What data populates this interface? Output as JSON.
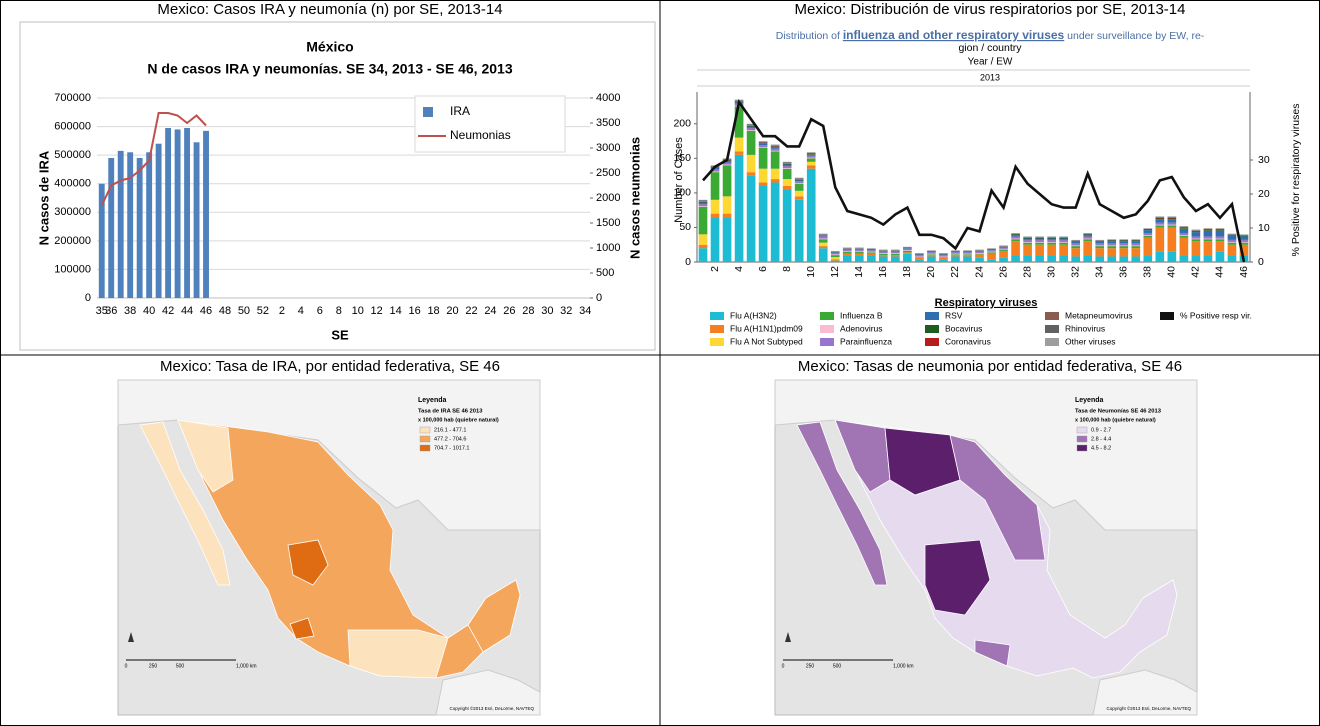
{
  "chart_data": [
    {
      "type": "combo",
      "panel_title": "Mexico: Casos IRA y neumonía (n) por SE, 2013-14",
      "title": "México",
      "subtitle": "N de casos IRA y neumonías. SE 34, 2013 - SE 46, 2013",
      "x_label": "SE",
      "y_label": "N casos de IRA",
      "y2_label": "N casos neumonias",
      "categories": [
        35,
        36,
        null,
        38,
        null,
        40,
        null,
        42,
        null,
        44,
        null,
        46,
        null,
        48,
        null,
        50,
        null,
        52,
        null,
        2,
        null,
        4,
        null,
        6,
        null,
        8,
        null,
        10,
        null,
        12,
        null,
        14,
        null,
        16,
        null,
        18,
        null,
        20,
        null,
        22,
        null,
        24,
        null,
        26,
        null,
        28,
        null,
        30,
        null,
        32,
        null,
        34
      ],
      "ylim": [
        0,
        700000
      ],
      "yticks": [
        0,
        100000,
        200000,
        300000,
        400000,
        500000,
        600000,
        700000
      ],
      "y2lim": [
        0,
        4000
      ],
      "y2ticks": [
        0,
        500,
        1000,
        1500,
        2000,
        2500,
        3000,
        3500,
        4000
      ],
      "grid": true,
      "legend": "upper right",
      "series": [
        {
          "name": "IRA",
          "type": "bar",
          "color": "#4f81bd",
          "values": [
            400000,
            490000,
            515000,
            510000,
            490000,
            510000,
            540000,
            595000,
            590000,
            595000,
            545000,
            585000,
            null,
            null,
            null,
            null,
            null,
            null,
            null,
            null,
            null,
            null,
            null,
            null,
            null,
            null,
            null,
            null,
            null,
            null,
            null,
            null,
            null,
            null,
            null,
            null,
            null,
            null,
            null,
            null,
            null,
            null,
            null,
            null,
            null,
            null,
            null,
            null,
            null,
            null,
            null,
            null
          ]
        },
        {
          "name": "Neumonias",
          "type": "line",
          "axis": "y2",
          "color": "#c0504d",
          "values": [
            1850,
            2250,
            2350,
            2400,
            2550,
            2750,
            3700,
            3700,
            3650,
            3500,
            3650,
            3450,
            null,
            null,
            null,
            null,
            null,
            null,
            null,
            null,
            null,
            null,
            null,
            null,
            null,
            null,
            null,
            null,
            null,
            null,
            null,
            null,
            null,
            null,
            null,
            null,
            null,
            null,
            null,
            null,
            null,
            null,
            null,
            null,
            null,
            null,
            null,
            null,
            null,
            null,
            null,
            null
          ]
        }
      ]
    },
    {
      "type": "stacked-combo",
      "panel_title": "Mexico: Distribución de virus respiratorios por SE, 2013-14",
      "subtitle": [
        "Distribution of ",
        "influenza and other respiratory viruses",
        " under surveillance by EW, re-",
        "gion / country"
      ],
      "header_label": "Year  /  EW",
      "header_value": "2013",
      "y_label": "Number of Cases",
      "y2_label": "% Positive for respiratory viruses",
      "legend_title": "Respiratory viruses",
      "categories": [
        null,
        2,
        null,
        4,
        null,
        6,
        null,
        8,
        null,
        10,
        null,
        12,
        null,
        14,
        null,
        16,
        null,
        18,
        null,
        20,
        null,
        22,
        null,
        24,
        null,
        26,
        null,
        28,
        null,
        30,
        null,
        32,
        null,
        34,
        null,
        36,
        null,
        38,
        null,
        40,
        null,
        42,
        null,
        44,
        null,
        46
      ],
      "ylim": [
        0,
        246
      ],
      "yticks": [
        0,
        50,
        100,
        150,
        200
      ],
      "y2lim": [
        0,
        50
      ],
      "y2ticks": [
        0,
        10,
        20,
        30
      ],
      "grid": false,
      "legend": "bottom",
      "series": [
        {
          "name": "Flu A(H3N2)",
          "type": "bar",
          "color": "#1ebcd3",
          "values": [
            20,
            65,
            65,
            155,
            125,
            110,
            115,
            105,
            90,
            135,
            20,
            2,
            10,
            10,
            10,
            8,
            8,
            12,
            4,
            8,
            4,
            8,
            8,
            6,
            4,
            6,
            10,
            10,
            10,
            10,
            10,
            8,
            10,
            8,
            8,
            8,
            8,
            10,
            15,
            15,
            10,
            10,
            10,
            15,
            10,
            10
          ]
        },
        {
          "name": "Flu A(H1N1)pdm09",
          "type": "bar",
          "color": "#f57f20",
          "values": [
            5,
            5,
            5,
            5,
            5,
            5,
            5,
            5,
            5,
            5,
            3,
            2,
            2,
            2,
            2,
            2,
            2,
            2,
            2,
            2,
            2,
            2,
            2,
            5,
            8,
            10,
            20,
            15,
            15,
            15,
            15,
            12,
            20,
            12,
            12,
            12,
            12,
            25,
            35,
            35,
            25,
            20,
            20,
            15,
            15,
            15
          ]
        },
        {
          "name": "Flu A Not Subtyped",
          "type": "bar",
          "color": "#fdd835",
          "values": [
            15,
            20,
            25,
            20,
            25,
            20,
            15,
            10,
            8,
            5,
            5,
            3,
            0,
            0,
            0,
            0,
            0,
            0,
            0,
            0,
            0,
            0,
            0,
            0,
            0,
            0,
            0,
            0,
            0,
            0,
            0,
            0,
            0,
            0,
            0,
            0,
            0,
            0,
            0,
            0,
            0,
            0,
            0,
            0,
            0,
            0
          ]
        },
        {
          "name": "Influenza B",
          "type": "bar",
          "color": "#3aaa35",
          "values": [
            40,
            40,
            45,
            45,
            35,
            30,
            25,
            15,
            10,
            5,
            5,
            3,
            3,
            3,
            2,
            2,
            2,
            2,
            1,
            1,
            1,
            1,
            1,
            1,
            2,
            2,
            3,
            3,
            3,
            3,
            3,
            3,
            3,
            3,
            3,
            3,
            3,
            3,
            3,
            3,
            3,
            3,
            3,
            3,
            3,
            3
          ]
        },
        {
          "name": "Adenovirus",
          "type": "bar",
          "color": "#f8bbd0",
          "values": [
            1,
            1,
            1,
            1,
            1,
            1,
            1,
            1,
            1,
            1,
            1,
            1,
            1,
            1,
            1,
            1,
            1,
            1,
            1,
            1,
            1,
            1,
            1,
            1,
            1,
            1,
            1,
            1,
            1,
            1,
            1,
            1,
            1,
            1,
            1,
            1,
            1,
            1,
            1,
            1,
            1,
            1,
            1,
            1,
            1,
            1
          ]
        },
        {
          "name": "Parainfluenza",
          "type": "bar",
          "color": "#9575cd",
          "values": [
            3,
            3,
            3,
            3,
            3,
            3,
            3,
            3,
            3,
            3,
            3,
            2,
            2,
            2,
            2,
            2,
            2,
            2,
            2,
            2,
            2,
            2,
            2,
            2,
            2,
            2,
            3,
            3,
            3,
            3,
            3,
            3,
            3,
            3,
            3,
            3,
            3,
            3,
            3,
            3,
            3,
            3,
            3,
            3,
            3,
            3
          ]
        },
        {
          "name": "RSV",
          "type": "bar",
          "color": "#2f6fb0",
          "values": [
            2,
            2,
            2,
            2,
            2,
            2,
            2,
            2,
            1,
            1,
            1,
            1,
            1,
            1,
            1,
            1,
            1,
            1,
            1,
            1,
            1,
            1,
            1,
            1,
            1,
            1,
            2,
            2,
            2,
            2,
            2,
            2,
            2,
            2,
            3,
            3,
            3,
            4,
            5,
            5,
            6,
            6,
            8,
            8,
            6,
            5
          ]
        },
        {
          "name": "Bocavirus",
          "type": "bar",
          "color": "#1b5e20",
          "values": [
            1,
            1,
            1,
            1,
            1,
            1,
            1,
            1,
            1,
            1,
            0,
            0,
            0,
            0,
            0,
            0,
            0,
            0,
            0,
            0,
            0,
            0,
            0,
            0,
            0,
            0,
            1,
            1,
            1,
            1,
            1,
            1,
            1,
            1,
            1,
            1,
            1,
            1,
            1,
            1,
            1,
            1,
            1,
            1,
            1,
            1
          ]
        },
        {
          "name": "Coronavirus",
          "type": "bar",
          "color": "#b71c1c",
          "values": [
            0,
            0,
            0,
            0,
            0,
            0,
            0,
            0,
            0,
            0,
            0,
            0,
            0,
            0,
            0,
            0,
            0,
            0,
            0,
            0,
            0,
            0,
            0,
            0,
            0,
            0,
            0,
            0,
            0,
            0,
            0,
            0,
            0,
            0,
            0,
            0,
            0,
            0,
            1,
            1,
            1,
            1,
            1,
            1,
            0,
            0
          ]
        },
        {
          "name": "Metapneumovirus",
          "type": "bar",
          "color": "#8d5a4f",
          "values": [
            1,
            1,
            1,
            1,
            1,
            1,
            1,
            1,
            1,
            1,
            1,
            0,
            0,
            0,
            0,
            0,
            0,
            0,
            0,
            0,
            0,
            0,
            0,
            0,
            0,
            0,
            0,
            0,
            0,
            0,
            0,
            0,
            0,
            0,
            0,
            0,
            0,
            0,
            0,
            0,
            0,
            0,
            0,
            0,
            0,
            0
          ]
        },
        {
          "name": "Rhinovirus",
          "type": "bar",
          "color": "#616161",
          "values": [
            1,
            1,
            1,
            1,
            1,
            1,
            1,
            1,
            1,
            1,
            1,
            1,
            1,
            1,
            1,
            1,
            1,
            1,
            1,
            1,
            1,
            1,
            1,
            1,
            1,
            1,
            1,
            1,
            1,
            1,
            1,
            1,
            1,
            1,
            1,
            1,
            1,
            1,
            1,
            1,
            1,
            1,
            1,
            1,
            1,
            1
          ]
        },
        {
          "name": "Other viruses",
          "type": "bar",
          "color": "#9e9e9e",
          "values": [
            1,
            1,
            1,
            1,
            1,
            1,
            1,
            1,
            1,
            1,
            1,
            1,
            1,
            1,
            1,
            1,
            1,
            1,
            1,
            1,
            1,
            1,
            1,
            1,
            1,
            1,
            1,
            1,
            1,
            1,
            1,
            1,
            1,
            1,
            1,
            1,
            1,
            1,
            1,
            1,
            1,
            1,
            1,
            1,
            1,
            1
          ]
        },
        {
          "name": "% Positive resp vir.",
          "type": "line",
          "axis": "y2",
          "color": "#111111",
          "values": [
            24,
            28,
            30,
            47,
            42,
            37,
            37,
            34,
            34,
            42,
            40,
            22,
            15,
            14,
            13,
            11,
            14,
            16,
            8,
            8,
            7,
            4,
            10,
            9,
            21,
            16,
            28,
            23,
            20,
            17,
            16,
            16,
            26,
            17,
            15,
            13,
            14,
            18,
            24,
            25,
            19,
            15,
            17,
            13,
            17,
            0
          ]
        }
      ]
    }
  ],
  "maps": [
    {
      "panel_title": "Mexico: Tasa de IRA, por entidad federativa, SE 46",
      "legend_heading": "Leyenda",
      "legend_title": "Tasa de IRA SE 46 2013",
      "legend_subtitle": "x 100,000 hab (quiebre natural)",
      "classes": [
        {
          "label": "216.1 - 477.1",
          "color": "#fde3bd"
        },
        {
          "label": "477.2 - 704.6",
          "color": "#f4a65c"
        },
        {
          "label": "704.7 - 1017.1",
          "color": "#df6c12"
        }
      ],
      "scale_labels": [
        "0",
        "250",
        "500",
        "1,000 km"
      ],
      "credit": "Copyright ©2013 Esri, DeLorme, NAVTEQ"
    },
    {
      "panel_title": "Mexico: Tasas de neumonia por entidad federativa, SE 46",
      "legend_heading": "Leyenda",
      "legend_title": "Tasa de Neumonías SE 46 2013",
      "legend_subtitle": "x 100,000 hab (quiebre natural)",
      "classes": [
        {
          "label": "0.9 - 2.7",
          "color": "#e6daef"
        },
        {
          "label": "2.8 - 4.4",
          "color": "#a174b4"
        },
        {
          "label": "4.5 - 8.2",
          "color": "#5b1f6b"
        }
      ],
      "scale_labels": [
        "0",
        "250",
        "500",
        "1,000 km"
      ],
      "credit": "Copyright ©2013 Esri, DeLorme, NAVTEQ"
    }
  ]
}
